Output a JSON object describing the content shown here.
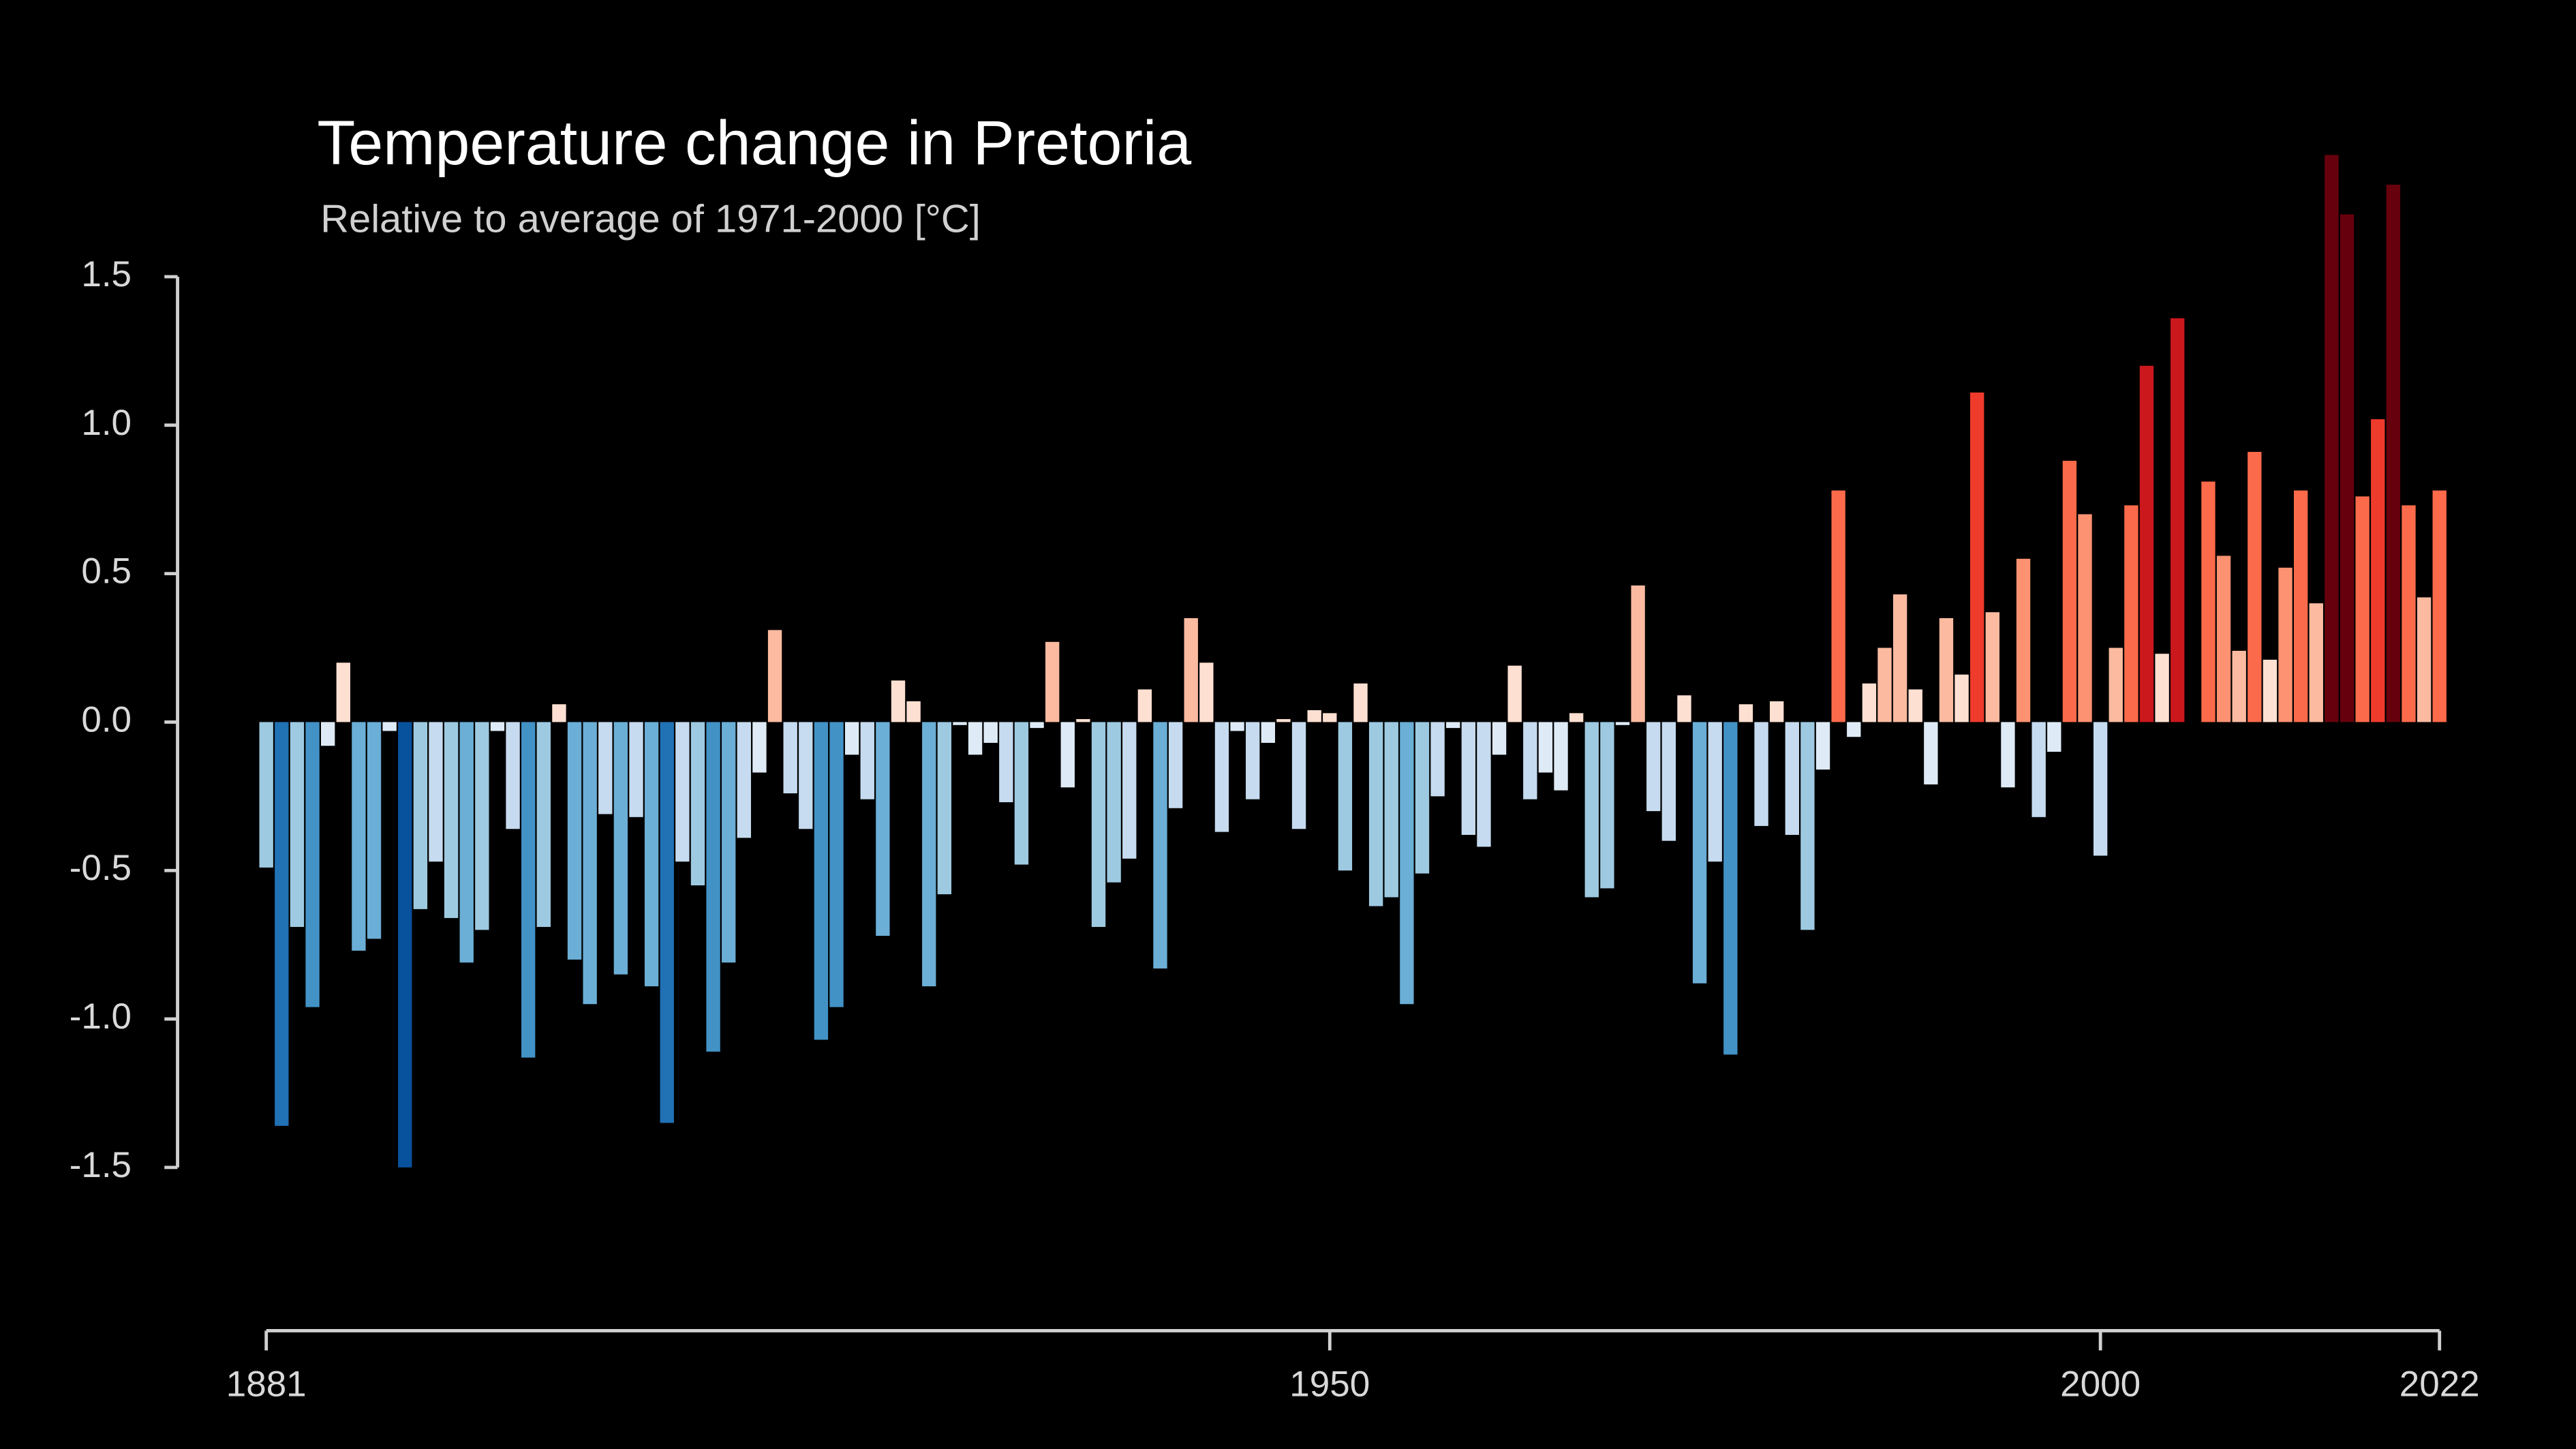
{
  "chart_data": {
    "type": "bar",
    "title": "Temperature change in Pretoria",
    "subtitle": "Relative to average of 1971-2000  [°C]",
    "x": [
      1881,
      1882,
      1883,
      1884,
      1885,
      1886,
      1887,
      1888,
      1889,
      1890,
      1891,
      1892,
      1893,
      1894,
      1895,
      1896,
      1897,
      1898,
      1899,
      1900,
      1901,
      1902,
      1903,
      1904,
      1905,
      1906,
      1907,
      1908,
      1909,
      1910,
      1911,
      1912,
      1913,
      1914,
      1915,
      1916,
      1917,
      1918,
      1919,
      1920,
      1921,
      1922,
      1923,
      1924,
      1925,
      1926,
      1927,
      1928,
      1929,
      1930,
      1931,
      1932,
      1933,
      1934,
      1935,
      1936,
      1937,
      1938,
      1939,
      1940,
      1941,
      1942,
      1943,
      1944,
      1945,
      1946,
      1947,
      1948,
      1949,
      1950,
      1951,
      1952,
      1953,
      1954,
      1955,
      1956,
      1957,
      1958,
      1959,
      1960,
      1961,
      1962,
      1963,
      1964,
      1965,
      1966,
      1967,
      1968,
      1969,
      1970,
      1971,
      1972,
      1973,
      1974,
      1975,
      1976,
      1977,
      1978,
      1979,
      1980,
      1981,
      1982,
      1983,
      1984,
      1985,
      1986,
      1987,
      1988,
      1989,
      1990,
      1991,
      1992,
      1993,
      1994,
      1995,
      1996,
      1997,
      1998,
      1999,
      2000,
      2001,
      2002,
      2003,
      2004,
      2005,
      2006,
      2007,
      2008,
      2009,
      2010,
      2011,
      2012,
      2013,
      2014,
      2015,
      2016,
      2017,
      2018,
      2019,
      2020,
      2021,
      2022
    ],
    "values": [
      -0.49,
      -1.36,
      -0.69,
      -0.96,
      -0.08,
      0.2,
      -0.77,
      -0.73,
      -0.03,
      -1.5,
      -0.63,
      -0.47,
      -0.66,
      -0.81,
      -0.7,
      -0.03,
      -0.36,
      -1.13,
      -0.69,
      0.06,
      -0.8,
      -0.95,
      -0.31,
      -0.85,
      -0.32,
      -0.89,
      -1.35,
      -0.47,
      -0.55,
      -1.11,
      -0.81,
      -0.39,
      -0.17,
      0.31,
      -0.24,
      -0.36,
      -1.07,
      -0.96,
      -0.11,
      -0.26,
      -0.72,
      0.14,
      0.07,
      -0.89,
      -0.58,
      -0.01,
      -0.11,
      -0.07,
      -0.27,
      -0.48,
      -0.02,
      0.27,
      -0.22,
      0.01,
      -0.69,
      -0.54,
      -0.46,
      0.11,
      -0.83,
      -0.29,
      0.35,
      0.2,
      -0.37,
      -0.03,
      -0.26,
      -0.07,
      0.01,
      -0.36,
      0.04,
      0.03,
      -0.5,
      0.13,
      -0.62,
      -0.59,
      -0.95,
      -0.51,
      -0.25,
      -0.02,
      -0.38,
      -0.42,
      -0.11,
      0.19,
      -0.26,
      -0.17,
      -0.23,
      0.03,
      -0.59,
      -0.56,
      -0.01,
      0.46,
      -0.3,
      -0.4,
      0.09,
      -0.88,
      -0.47,
      -1.12,
      0.06,
      -0.35,
      0.07,
      -0.38,
      -0.7,
      -0.16,
      0.78,
      -0.05,
      0.13,
      0.25,
      0.43,
      0.11,
      -0.21,
      0.35,
      0.16,
      1.11,
      0.37,
      -0.22,
      0.55,
      -0.32,
      -0.1,
      0.88,
      0.7,
      -0.45,
      0.25,
      0.73,
      1.2,
      0.23,
      1.36,
      0.0,
      0.81,
      0.56,
      0.24,
      0.91,
      0.21,
      0.52,
      0.78,
      0.4,
      1.91,
      1.71,
      0.76,
      1.02,
      1.81,
      0.73,
      0.42,
      0.78
    ],
    "colormap": [
      "#08306b",
      "#08519c",
      "#2171b5",
      "#4292c6",
      "#6baed6",
      "#9ecae1",
      "#c6dbef",
      "#deebf7",
      "#fee0d2",
      "#fcbba1",
      "#fc9272",
      "#fb6a4a",
      "#ef3b2c",
      "#cb181d",
      "#a50f15",
      "#67000d"
    ],
    "xlim": [
      1881,
      2022
    ],
    "xticks": [
      1881,
      1950,
      2000,
      2022
    ],
    "ylim": [
      -2.05,
      2.1
    ],
    "yticks": [
      {
        "value": 1.5,
        "label": "1.5"
      },
      {
        "value": 1.0,
        "label": "1.0"
      },
      {
        "value": 0.5,
        "label": "0.5"
      },
      {
        "value": 0,
        "label": "0.0"
      },
      {
        "value": -0.5,
        "label": "-0.5"
      },
      {
        "value": -1.0,
        "label": "-1.0"
      },
      {
        "value": -1.5,
        "label": "-1.5"
      }
    ]
  }
}
